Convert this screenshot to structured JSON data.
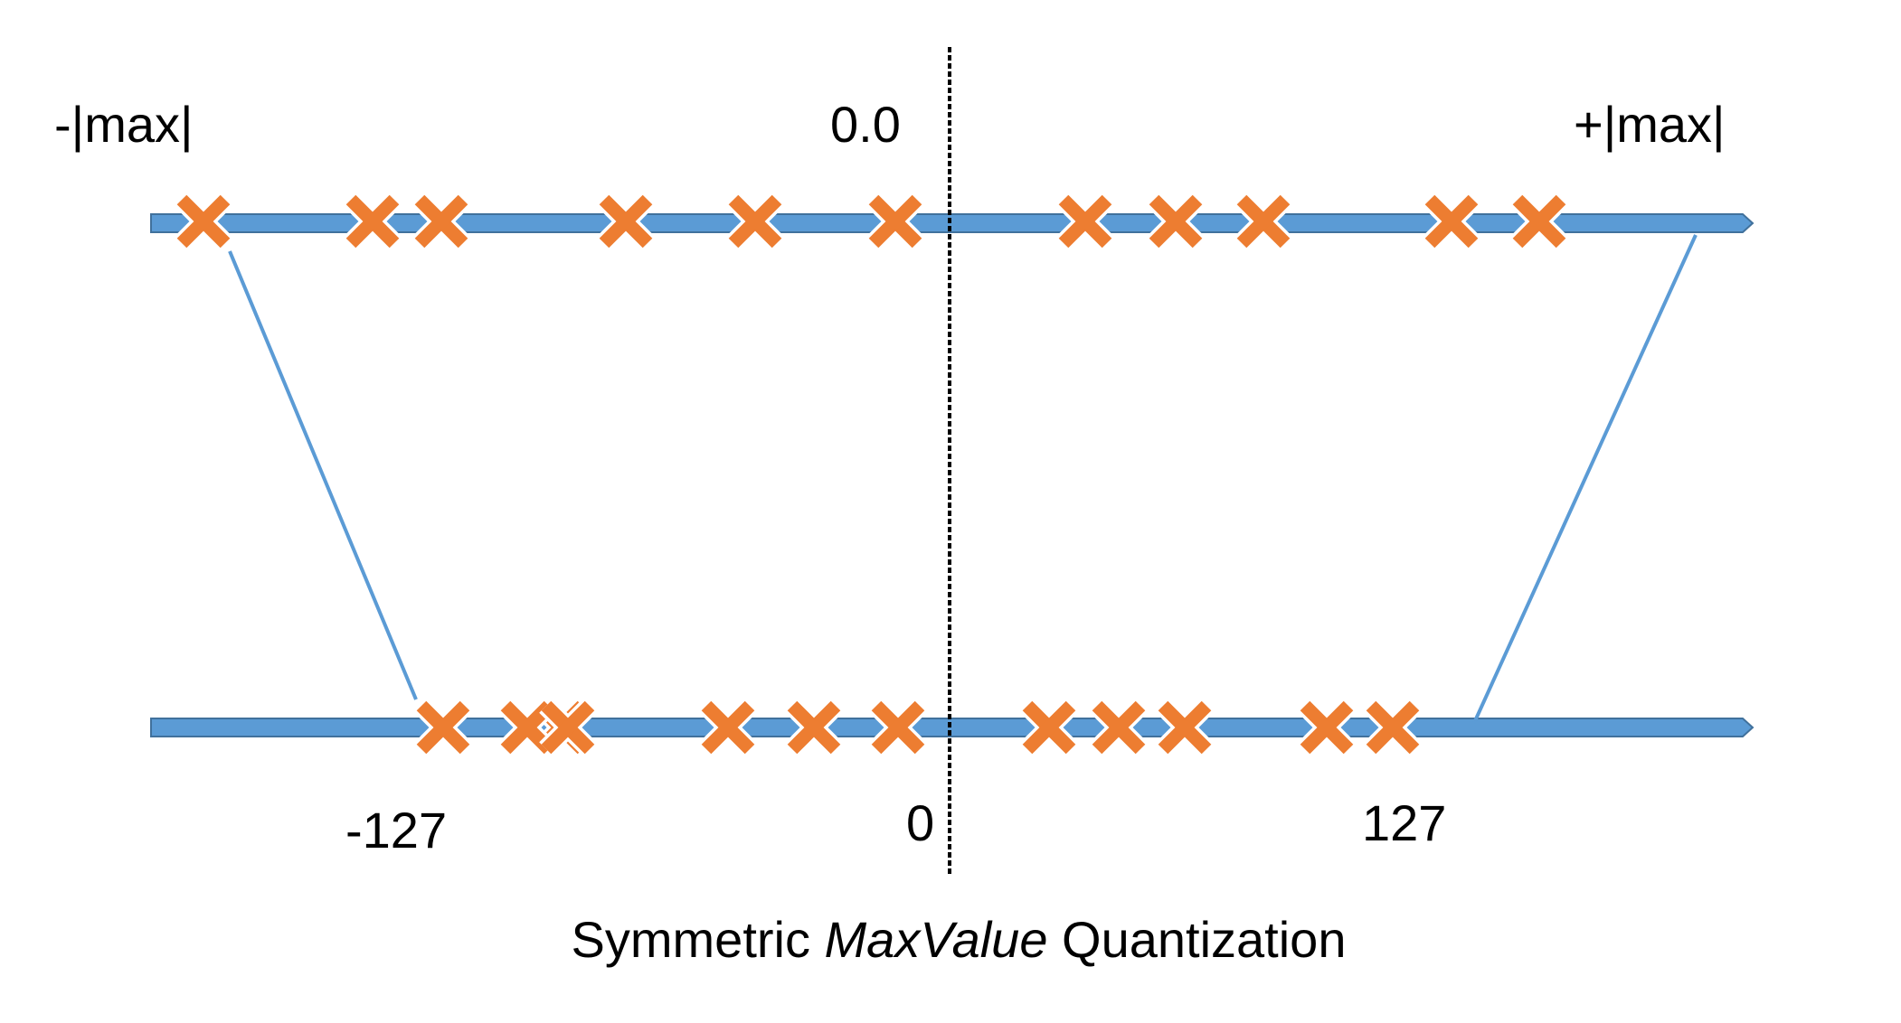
{
  "labels": {
    "top_left": "-|max|",
    "top_center": "0.0",
    "top_right": "+|max|",
    "bottom_left": "-127",
    "bottom_center": "0",
    "bottom_right": "127"
  },
  "caption": {
    "prefix": "Symmetric ",
    "emphasis": "MaxValue",
    "suffix": " Quantization"
  },
  "colors": {
    "axis": "#5b9bd5",
    "axis_outline": "#41719c",
    "marker": "#ed7d31",
    "mapping_line": "#5b9bd5",
    "zero_divider": "#000000"
  },
  "top_axis_marker_count": 11,
  "bottom_axis_marker_count": 12
}
